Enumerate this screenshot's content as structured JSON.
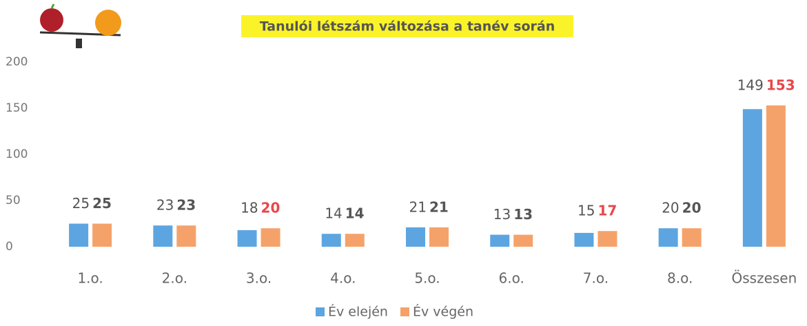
{
  "chart_data": {
    "type": "bar",
    "title": "Tanulói létszám változása a tanév során",
    "categories": [
      "1.o.",
      "2.o.",
      "3.o.",
      "4.o.",
      "5.o.",
      "6.o.",
      "7.o.",
      "8.o.",
      "Összesen"
    ],
    "series": [
      {
        "name": "Év elején",
        "color": "#5da5e0",
        "values": [
          25,
          23,
          18,
          14,
          21,
          13,
          15,
          20,
          149
        ]
      },
      {
        "name": "Év végén",
        "color": "#f5a26a",
        "values": [
          25,
          23,
          20,
          14,
          21,
          13,
          17,
          20,
          153
        ]
      }
    ],
    "ylim": [
      0,
      200
    ],
    "yticks": [
      0,
      50,
      100,
      150,
      200
    ],
    "grid": false,
    "legend": "bottom"
  }
}
